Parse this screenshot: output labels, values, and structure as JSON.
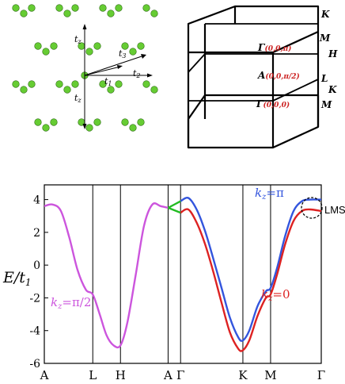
{
  "lattice": {
    "hop_labels": [
      "t",
      "z",
      "t",
      "3",
      "t",
      "1",
      "t",
      "2",
      "t",
      "z"
    ]
  },
  "brillouin_zone": {
    "labels": {
      "K_top": "K",
      "M_top": "M",
      "H": "H",
      "L": "L",
      "K_bot": "K",
      "M_bot": "M",
      "gamma_pi": "Γ",
      "gamma_pi_coord": "(0,0,π)",
      "A": "A",
      "A_coord": "(0,0,π/2)",
      "gamma_0": "Γ",
      "gamma_0_coord": "(0,0,0)"
    }
  },
  "colors": {
    "kz_pi2": "#cc55dd",
    "kz_pi": "#3355dd",
    "kz_0": "#dd2222",
    "A_gamma": "#22bb22",
    "lattice_dot": "#66cc33",
    "bz_red": "#cc2222"
  },
  "chart_data": {
    "type": "line",
    "ylabel": "E/t",
    "ylabel_sub": "1",
    "ylim": [
      -6,
      4.9
    ],
    "yticks": [
      4,
      2,
      0,
      -2,
      -4,
      -6
    ],
    "ytick_labels": [
      "4",
      "2",
      "0",
      "-2",
      "-4",
      "-6"
    ],
    "high_symmetry_points": [
      {
        "label": "A",
        "pos": 0.0
      },
      {
        "label": "L",
        "pos": 0.175
      },
      {
        "label": "H",
        "pos": 0.275
      },
      {
        "label": "A",
        "pos": 0.447
      },
      {
        "label": "Γ",
        "pos": 0.492
      },
      {
        "label": "K",
        "pos": 0.717
      },
      {
        "label": "M",
        "pos": 0.817
      },
      {
        "label": "Γ",
        "pos": 1.0
      }
    ],
    "series": [
      {
        "name": "k_z=π/2",
        "x": [
          0.0,
          0.03,
          0.06,
          0.09,
          0.12,
          0.15,
          0.175,
          0.2,
          0.225,
          0.25,
          0.275,
          0.3,
          0.33,
          0.36,
          0.39,
          0.42,
          0.447
        ],
        "y": [
          3.6,
          3.7,
          3.3,
          1.7,
          -0.3,
          -1.5,
          -1.8,
          -3.0,
          -4.3,
          -4.9,
          -4.9,
          -3.5,
          -0.6,
          2.4,
          3.7,
          3.6,
          3.5
        ]
      },
      {
        "name": "",
        "x": [
          0.447,
          0.492
        ],
        "y": [
          3.5,
          3.9
        ]
      },
      {
        "name": "",
        "x": [
          0.447,
          0.492
        ],
        "y": [
          3.5,
          3.2
        ]
      },
      {
        "name": "k_z=π",
        "x": [
          0.492,
          0.52,
          0.55,
          0.58,
          0.61,
          0.64,
          0.67,
          0.7,
          0.717,
          0.74,
          0.77,
          0.8,
          0.817,
          0.84,
          0.87,
          0.9,
          0.93,
          0.96,
          1.0
        ],
        "y": [
          3.9,
          4.1,
          3.4,
          2.1,
          0.4,
          -1.4,
          -3.2,
          -4.4,
          -4.6,
          -4.0,
          -2.5,
          -1.6,
          -1.4,
          -0.2,
          1.8,
          3.3,
          3.9,
          4.0,
          4.0
        ]
      },
      {
        "name": "k_z=0",
        "x": [
          0.492,
          0.52,
          0.55,
          0.58,
          0.61,
          0.64,
          0.67,
          0.7,
          0.717,
          0.74,
          0.77,
          0.8,
          0.817,
          0.84,
          0.87,
          0.9,
          0.93,
          0.96,
          1.0
        ],
        "y": [
          3.2,
          3.4,
          2.6,
          1.3,
          -0.4,
          -2.3,
          -4.1,
          -5.1,
          -5.2,
          -4.6,
          -3.1,
          -2.0,
          -1.8,
          -0.6,
          1.3,
          2.7,
          3.3,
          3.4,
          3.3
        ]
      }
    ],
    "annotations": {
      "kz_pi2_k": "k",
      "kz_pi2_z": "z",
      "kz_pi2_eq": "=π/2",
      "kz_pi_k": "k",
      "kz_pi_z": "z",
      "kz_pi_eq": "=π",
      "kz_0_k": "k",
      "kz_0_z": "z",
      "kz_0_eq": "=0",
      "lms": "LMS"
    }
  }
}
